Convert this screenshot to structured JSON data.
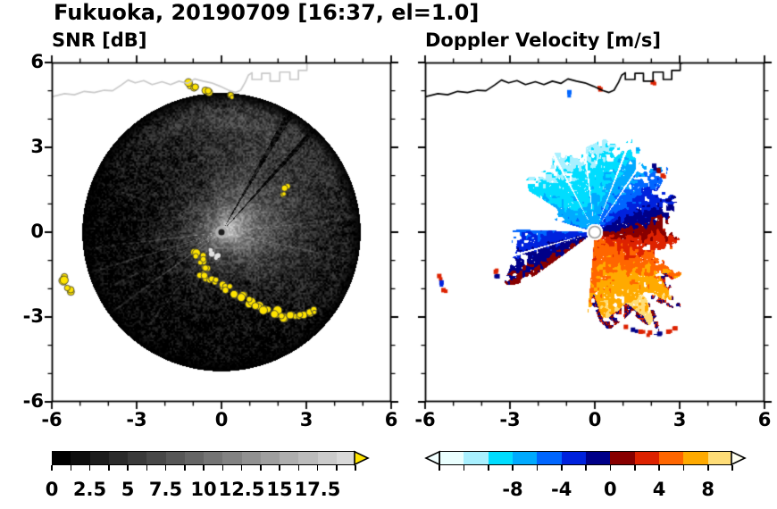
{
  "title": "Fukuoka, 20190709 [16:37, el=1.0]",
  "chart_data": {
    "type": "heatmap",
    "subtype": "dual_doppler_radar_ppi",
    "station": "Fukuoka",
    "date": "20190709",
    "time": "16:37",
    "elevation_deg": 1.0,
    "axes": {
      "x_range": [
        -6,
        6
      ],
      "y_range": [
        -6,
        6
      ],
      "x_tick_values": [
        -6,
        -3,
        0,
        3,
        6
      ],
      "x_tick_labels": [
        "-6",
        "-3",
        "0",
        "3",
        "6"
      ],
      "y_tick_values": [
        6,
        3,
        0,
        -3,
        -6
      ],
      "y_tick_labels": [
        "6",
        "3",
        "0",
        "-3",
        "-6"
      ],
      "minor_tick_step": 1
    },
    "panels": [
      {
        "id": "snr",
        "title": "SNR [dB]",
        "units": "dB",
        "colorbar": {
          "min": 0,
          "max": 20,
          "step": 1.25,
          "colors": [
            "#000000",
            "#0e0e0e",
            "#1d1d1d",
            "#2b2b2b",
            "#3a3a3a",
            "#484848",
            "#575757",
            "#656565",
            "#747474",
            "#828282",
            "#919191",
            "#9f9f9f",
            "#aeaeae",
            "#bcbcbc",
            "#cbcbcb",
            "#d9d9d9"
          ],
          "tick_label_values": [
            0,
            2.5,
            5,
            7.5,
            10,
            12.5,
            15,
            17.5
          ],
          "tick_labels": [
            "0",
            "2.5",
            "5",
            "7.5",
            "10",
            "12.5",
            "15",
            "17.5"
          ],
          "over_arrow_color": "#ffe400"
        },
        "field": {
          "disc_radius_km": 4.9,
          "center_peak_db": 15,
          "haze_peak_db": 7,
          "haze_azimuth_deg": 20,
          "north_band_db": 4.5,
          "bright_spokes": [
            [
              187,
              5
            ],
            [
              197,
              6
            ],
            [
              206,
              5
            ],
            [
              216,
              6
            ],
            [
              232,
              4
            ],
            [
              158,
              3.5
            ],
            [
              -12,
              4
            ],
            [
              6,
              3.5
            ]
          ],
          "dark_spokes": [
            [
              48,
              1.1
            ],
            [
              60,
              1.4
            ]
          ],
          "speckle_db": 3.2
        },
        "clutter": {
          "color": "#ffe400",
          "blobs_km": [
            [
              -5.55,
              -1.6,
              0.15
            ],
            [
              -5.38,
              -2.05,
              0.12
            ],
            [
              -1.15,
              5.2,
              0.12
            ],
            [
              -0.9,
              5.08,
              0.1
            ],
            [
              -0.5,
              5.0,
              0.11
            ],
            [
              0.3,
              4.78,
              0.1
            ],
            [
              2.3,
              1.55,
              0.1
            ],
            [
              2.18,
              1.32,
              0.08
            ],
            [
              -0.7,
              -0.9,
              0.1
            ],
            [
              -0.88,
              -0.8,
              0.13
            ],
            [
              -0.72,
              -1.02,
              0.12
            ],
            [
              -0.6,
              -1.22,
              0.13
            ],
            [
              -0.72,
              -1.45,
              0.12
            ],
            [
              -0.5,
              -1.62,
              0.13
            ],
            [
              -0.25,
              -1.72,
              0.12
            ],
            [
              0.0,
              -1.86,
              0.13
            ],
            [
              0.22,
              -2.0,
              0.12
            ],
            [
              0.46,
              -2.15,
              0.13
            ],
            [
              0.72,
              -2.3,
              0.13
            ],
            [
              0.98,
              -2.46,
              0.13
            ],
            [
              1.26,
              -2.6,
              0.14
            ],
            [
              1.56,
              -2.76,
              0.13
            ],
            [
              1.9,
              -2.86,
              0.14
            ],
            [
              2.22,
              -2.96,
              0.14
            ],
            [
              2.52,
              -3.0,
              0.13
            ],
            [
              2.82,
              -2.94,
              0.13
            ],
            [
              3.08,
              -2.84,
              0.12
            ],
            [
              3.3,
              -2.78,
              0.11
            ]
          ]
        },
        "bright_blobs": {
          "color": "#e2e2e2",
          "blobs_km": [
            [
              -0.35,
              -0.7,
              0.1
            ],
            [
              -0.15,
              -0.85,
              0.09
            ]
          ]
        },
        "coastline_color": "#c9c9c9"
      },
      {
        "id": "velocity",
        "title": "Doppler Velocity [m/s]",
        "units": "m/s",
        "colorbar": {
          "min": -14,
          "max": 10,
          "step": 2,
          "colors": [
            "#eaffff",
            "#a8f0ff",
            "#00ddff",
            "#00aaff",
            "#0066ff",
            "#0022dd",
            "#000088",
            "#880000",
            "#dd2200",
            "#ff6600",
            "#ffaa00",
            "#ffdd77"
          ],
          "tick_label_values": [
            -8,
            -4,
            0,
            4,
            8
          ],
          "tick_labels": [
            "-8",
            "-4",
            "0",
            "4",
            "8"
          ],
          "under_arrow_color": "#f2ffff",
          "over_arrow_color": "#fffff0"
        },
        "field": {
          "wind_to_azimuth_deg": 290,
          "speed_bias_ms": -1.5,
          "speed_base_ms": 5.2,
          "speed_slope_ms_per_km": 1.5,
          "noise_ms": 2.4,
          "inner_blank_radius_km": 0.3,
          "coverage_sectors_deg_km": [
            [
              -95,
              -60,
              3.15
            ],
            [
              -60,
              -25,
              3.45
            ],
            [
              -25,
              20,
              2.75
            ],
            [
              20,
              60,
              2.95
            ],
            [
              60,
              100,
              3.1
            ],
            [
              100,
              148,
              2.75
            ],
            [
              148,
              163,
              1.6
            ],
            [
              178,
              216,
              2.95
            ]
          ],
          "clear_ray_azimuths_deg": [
            56,
            69,
            97,
            118,
            196
          ],
          "alias_fringe_sector_deg": [
            -92,
            -30
          ]
        },
        "echo_dots_km_v": [
          [
            -5.5,
            -1.55,
            2.5
          ],
          [
            -5.42,
            -1.78,
            -3
          ],
          [
            -5.35,
            -2.05,
            2.5
          ],
          [
            -3.5,
            -1.4,
            2.5
          ],
          [
            -3.44,
            -1.56,
            -2
          ],
          [
            0.2,
            5.05,
            2.5
          ],
          [
            2.05,
            5.3,
            2.5
          ],
          [
            -0.9,
            4.95,
            -5
          ],
          [
            2.25,
            2.2,
            1
          ],
          [
            2.4,
            2.0,
            3
          ],
          [
            2.1,
            2.35,
            -1
          ],
          [
            1.1,
            -3.35,
            2.5
          ],
          [
            1.35,
            -3.45,
            -1
          ],
          [
            1.62,
            -3.52,
            2.5
          ],
          [
            1.95,
            -3.55,
            3
          ],
          [
            2.28,
            -3.6,
            -1
          ],
          [
            2.6,
            -3.52,
            2.5
          ],
          [
            2.85,
            -3.4,
            3
          ]
        ],
        "coastline_color": "#000000"
      }
    ],
    "coastline_km": [
      [
        -6.05,
        4.78
      ],
      [
        -5.55,
        4.9
      ],
      [
        -5.2,
        4.86
      ],
      [
        -4.85,
        4.98
      ],
      [
        -4.5,
        4.94
      ],
      [
        -4.15,
        5.02
      ],
      [
        -3.85,
        5.0
      ],
      [
        -3.55,
        5.2
      ],
      [
        -3.3,
        5.38
      ],
      [
        -3.05,
        5.28
      ],
      [
        -2.75,
        5.36
      ],
      [
        -2.45,
        5.22
      ],
      [
        -2.1,
        5.32
      ],
      [
        -1.8,
        5.22
      ],
      [
        -1.5,
        5.34
      ],
      [
        -1.2,
        5.26
      ],
      [
        -0.95,
        5.42
      ],
      [
        -0.65,
        5.34
      ],
      [
        -0.35,
        5.28
      ],
      [
        -0.05,
        5.16
      ],
      [
        0.25,
        5.02
      ],
      [
        0.5,
        4.94
      ],
      [
        0.68,
        5.02
      ],
      [
        0.84,
        5.3
      ],
      [
        0.95,
        5.55
      ],
      [
        1.08,
        5.64
      ],
      [
        1.08,
        5.4
      ],
      [
        1.42,
        5.4
      ],
      [
        1.42,
        5.62
      ],
      [
        1.72,
        5.62
      ],
      [
        1.72,
        5.34
      ],
      [
        2.06,
        5.34
      ],
      [
        2.06,
        5.66
      ],
      [
        2.42,
        5.66
      ],
      [
        2.42,
        5.4
      ],
      [
        2.72,
        5.4
      ],
      [
        2.72,
        5.72
      ],
      [
        3.02,
        5.72
      ],
      [
        3.02,
        5.96
      ],
      [
        3.3,
        6.05
      ]
    ]
  }
}
